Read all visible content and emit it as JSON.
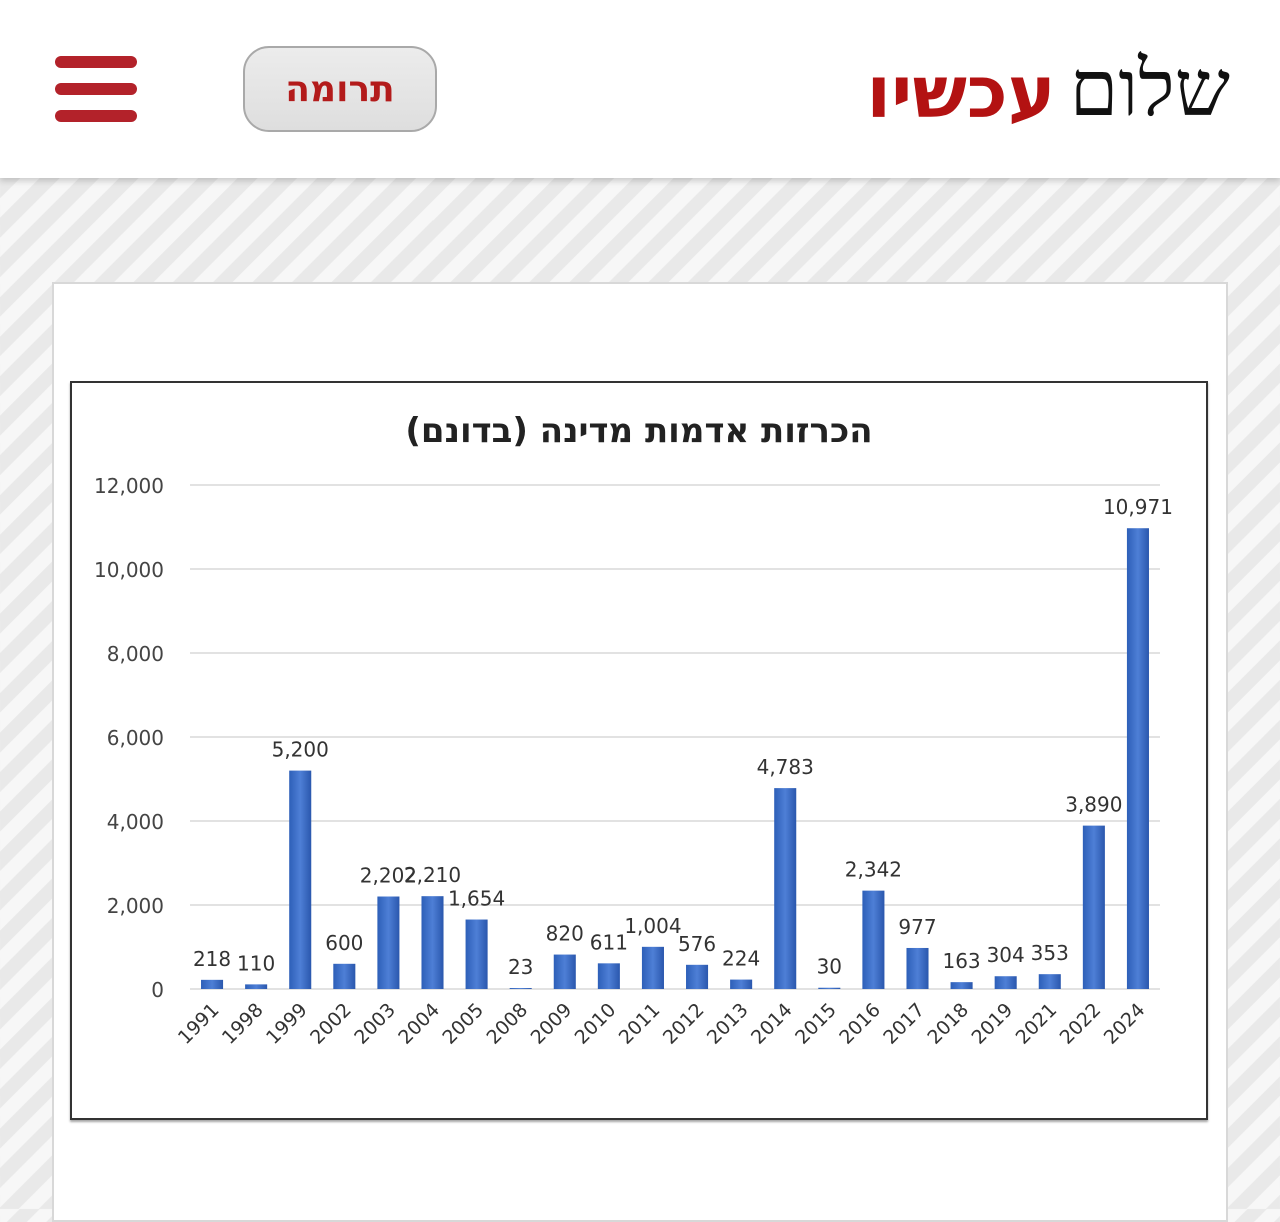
{
  "header": {
    "logo": {
      "word1": "שלום",
      "word2": "עכשיו",
      "word1_color": "#111111",
      "word2_color": "#b31212"
    },
    "donate_button": {
      "label": "תרומה"
    },
    "menu_icon": "hamburger-icon",
    "accent_color": "#b3222a"
  },
  "chart_data": {
    "type": "bar",
    "title": "הכרזות אדמות מדינה (בדונם)",
    "xlabel": "",
    "ylabel": "",
    "categories": [
      "1991",
      "1998",
      "1999",
      "2002",
      "2003",
      "2004",
      "2005",
      "2008",
      "2009",
      "2010",
      "2011",
      "2012",
      "2013",
      "2014",
      "2015",
      "2016",
      "2017",
      "2018",
      "2019",
      "2021",
      "2022",
      "2024"
    ],
    "values": [
      218,
      110,
      5200,
      600,
      2202,
      2210,
      1654,
      23,
      820,
      611,
      1004,
      576,
      224,
      4783,
      30,
      2342,
      977,
      163,
      304,
      353,
      3890,
      10971
    ],
    "data_labels": [
      "218",
      "110",
      "5,200",
      "600",
      "2,202",
      "2,210",
      "1,654",
      "23",
      "820",
      "611",
      "1,004",
      "576",
      "224",
      "4,783",
      "30",
      "2,342",
      "977",
      "163",
      "304",
      "353",
      "3,890",
      "10,971"
    ],
    "ylim": [
      0,
      12000
    ],
    "yticks": [
      0,
      2000,
      4000,
      6000,
      8000,
      10000,
      12000
    ],
    "ytick_labels": [
      "0",
      "2,000",
      "4,000",
      "6,000",
      "8,000",
      "10,000",
      "12,000"
    ],
    "grid": true,
    "legend": null,
    "bar_color": "#4472c4",
    "x_tick_rotation": -45
  }
}
